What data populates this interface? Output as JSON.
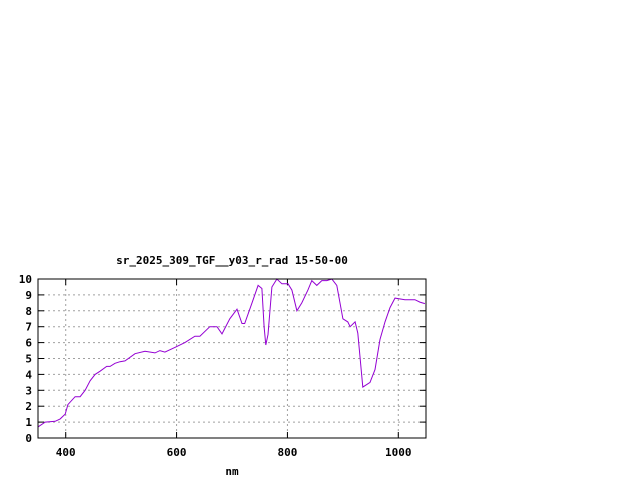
{
  "chart_data": {
    "type": "line",
    "title": "sr_2025_309_TGF__y03_r_rad 15-50-00",
    "xlabel": "nm",
    "ylabel": "",
    "xlim": [
      350,
      1050
    ],
    "ylim": [
      0,
      10
    ],
    "xticks": [
      400,
      600,
      800,
      1000
    ],
    "yticks": [
      0,
      1,
      2,
      3,
      4,
      5,
      6,
      7,
      8,
      9,
      10
    ],
    "grid": true,
    "line_color": "#9400d3",
    "series": [
      {
        "x": [
          350,
          363,
          381,
          390,
          399,
          404,
          417,
          426,
          435,
          444,
          453,
          462,
          474,
          480,
          489,
          498,
          507,
          525,
          543,
          561,
          570,
          579,
          597,
          615,
          633,
          642,
          660,
          673,
          682,
          696,
          709,
          718,
          723,
          736,
          747,
          754,
          758,
          761,
          765,
          772,
          781,
          790,
          801,
          808,
          817,
          826,
          837,
          844,
          853,
          862,
          871,
          880,
          889,
          900,
          909,
          913,
          922,
          927,
          936,
          949,
          958,
          967,
          976,
          985,
          994,
          1012,
          1021,
          1030,
          1039,
          1048
        ],
        "y": [
          0.7,
          1.0,
          1.05,
          1.2,
          1.5,
          2.1,
          2.6,
          2.6,
          3.0,
          3.6,
          4.0,
          4.2,
          4.5,
          4.5,
          4.7,
          4.8,
          4.85,
          5.3,
          5.45,
          5.35,
          5.5,
          5.4,
          5.7,
          6.0,
          6.4,
          6.4,
          7.0,
          7.0,
          6.55,
          7.5,
          8.1,
          7.2,
          7.2,
          8.5,
          9.6,
          9.4,
          7.0,
          5.85,
          6.5,
          9.5,
          10.0,
          9.7,
          9.7,
          9.3,
          8.0,
          8.5,
          9.3,
          9.9,
          9.6,
          9.9,
          9.9,
          10.0,
          9.6,
          7.5,
          7.3,
          7.0,
          7.3,
          6.6,
          3.2,
          3.5,
          4.3,
          6.2,
          7.3,
          8.2,
          8.8,
          8.7,
          8.7,
          8.7,
          8.55,
          8.45
        ]
      }
    ]
  }
}
